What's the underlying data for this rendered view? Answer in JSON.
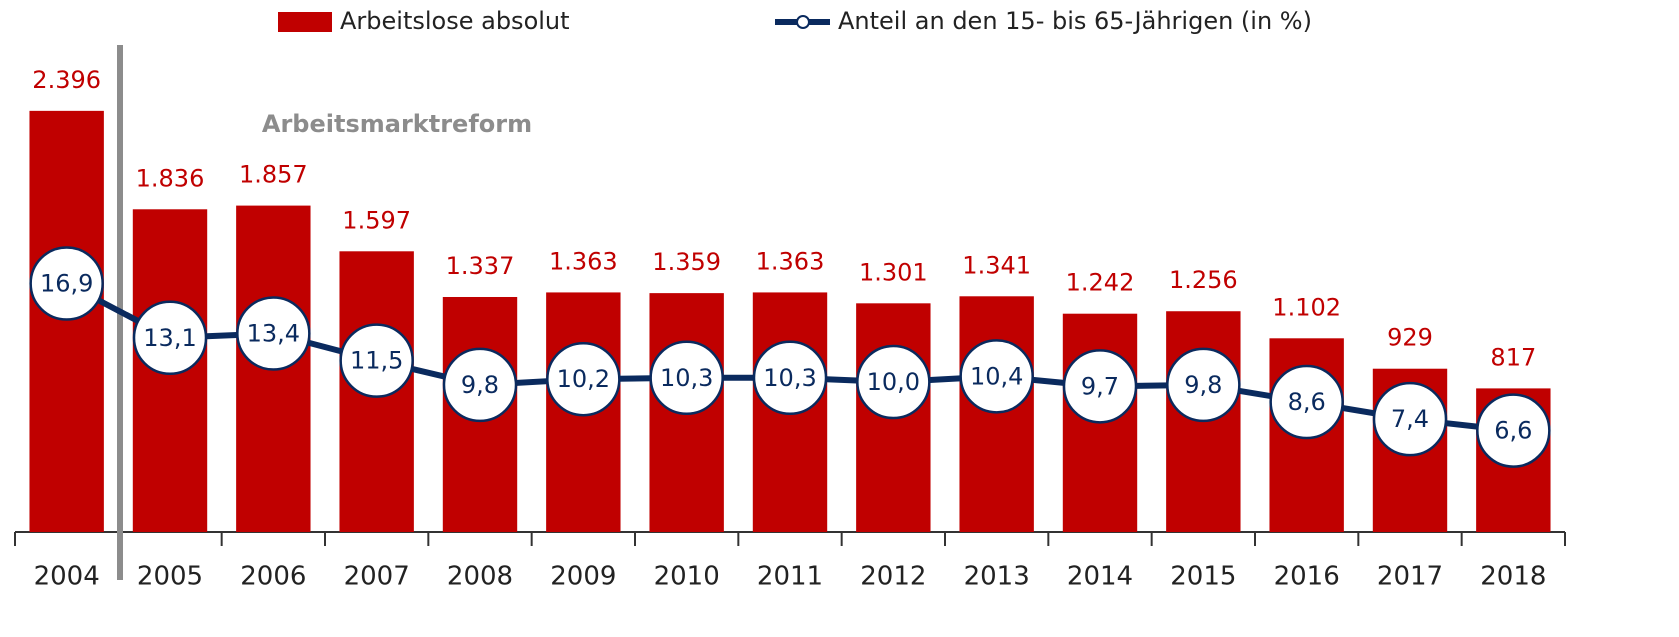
{
  "chart_data": {
    "type": "bar",
    "categories": [
      "2004",
      "2005",
      "2006",
      "2007",
      "2008",
      "2009",
      "2010",
      "2011",
      "2012",
      "2013",
      "2014",
      "2015",
      "2016",
      "2017",
      "2018"
    ],
    "series": [
      {
        "name": "Arbeitslose absolut",
        "type": "bar",
        "color": "#c00000",
        "values": [
          2396,
          1836,
          1857,
          1597,
          1337,
          1363,
          1359,
          1363,
          1301,
          1341,
          1242,
          1256,
          1102,
          929,
          817
        ],
        "value_labels": [
          "2.396",
          "1.836",
          "1.857",
          "1.597",
          "1.337",
          "1.363",
          "1.359",
          "1.363",
          "1.301",
          "1.341",
          "1.242",
          "1.256",
          "1.102",
          "929",
          "817"
        ]
      },
      {
        "name": "Anteil an den 15- bis 65-Jährigen (in %)",
        "type": "line",
        "axis": "y2",
        "color": "#0a2a5e",
        "values": [
          16.9,
          13.1,
          13.4,
          11.5,
          9.8,
          10.2,
          10.3,
          10.3,
          10.0,
          10.4,
          9.7,
          9.8,
          8.6,
          7.4,
          6.6
        ],
        "value_labels": [
          "16,9",
          "13,1",
          "13,4",
          "11,5",
          "9,8",
          "10,2",
          "10,3",
          "10,3",
          "10,0",
          "10,4",
          "9,7",
          "9,8",
          "8,6",
          "7,4",
          "6,6"
        ]
      }
    ],
    "annotations": [
      {
        "text": "Arbeitsmarktreform"
      }
    ],
    "ylim": [
      0,
      2600
    ],
    "y2lim": [
      -0.5,
      31.5
    ],
    "grid": false,
    "legend": "top"
  }
}
